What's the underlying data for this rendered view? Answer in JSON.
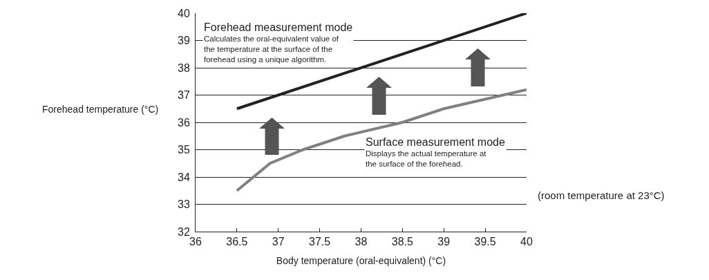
{
  "chart_data": {
    "type": "line",
    "xlabel": "Body temperature (oral-equivalent) (°C)",
    "ylabel": "Forehead temperature (°C)",
    "xlim": [
      36,
      40
    ],
    "xticks": [
      36,
      36.5,
      37,
      37.5,
      38,
      38.5,
      39,
      39.5,
      40
    ],
    "ylim": [
      32,
      40
    ],
    "yticks": [
      32,
      33,
      34,
      35,
      36,
      37,
      38,
      39,
      40
    ],
    "grid": "y",
    "marker": "none",
    "line_style": "solid",
    "series": [
      {
        "color": "#222222",
        "x": [
          36.5,
          40
        ],
        "values": [
          36.5,
          40
        ]
      },
      {
        "color": "#808080",
        "x": [
          36.5,
          36.9,
          37.3,
          37.8,
          38.5,
          39,
          40
        ],
        "values": [
          33.5,
          34.5,
          35,
          35.5,
          36,
          36.5,
          37.2
        ]
      }
    ],
    "annotations": [
      "Forehead measurement mode\nCalculates the oral-equivalent value of\nthe temperature at the surface of the\nforehead using a unique algorithm.",
      "Surface measurement mode\nDisplays the actual temperature at\nthe surface of the forehead.",
      "(room temperature at 23°C)"
    ]
  }
}
